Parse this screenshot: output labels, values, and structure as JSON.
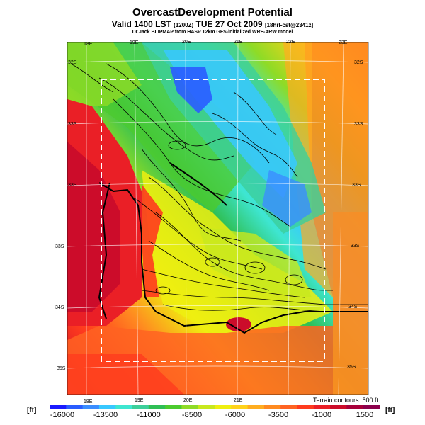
{
  "header": {
    "title": "OvercastDevelopment Potential",
    "subtitle_main": "Valid 1400 LST",
    "subtitle_code": "(1200Z)",
    "subtitle_date": "TUE 27 Oct 2009",
    "subtitle_forecast": "[18hrFcst@2341z]",
    "credit": "Dr.Jack BLIPMAP from HASP 12km GFS-initialized WRF-ARW model"
  },
  "axes": {
    "top_lon": [
      "18E",
      "19E",
      "20E",
      "21E",
      "22E",
      "23E"
    ],
    "bottom_lon": [
      "18E",
      "19E",
      "20E",
      "21E"
    ],
    "right_lat": [
      "32S",
      "33S",
      "33S",
      "33S",
      "34S",
      "35S"
    ],
    "left_lat": [
      "32S",
      "33S",
      "33S",
      "33S",
      "34S",
      "35S"
    ]
  },
  "footer": {
    "terrain_note": "Terrain contours: 500 ft",
    "unit_left": "[ft]",
    "unit_right": "[ft]",
    "colorbar_labels": [
      "-16000",
      "-13500",
      "-11000",
      "-8500",
      "-6000",
      "-3500",
      "-1000",
      "1500"
    ]
  },
  "colors": {
    "scale": [
      "#1a1aff",
      "#2a5cff",
      "#3b8dff",
      "#38c8ff",
      "#3ee6d0",
      "#3ccf9a",
      "#2fbf55",
      "#4ccb2e",
      "#8edb26",
      "#c8e81e",
      "#efef10",
      "#ffd21a",
      "#ffad1f",
      "#ff8a20",
      "#ff6322",
      "#ff3b1e",
      "#ea1f26",
      "#cc0c2a",
      "#a8003a",
      "#8c004c"
    ]
  }
}
